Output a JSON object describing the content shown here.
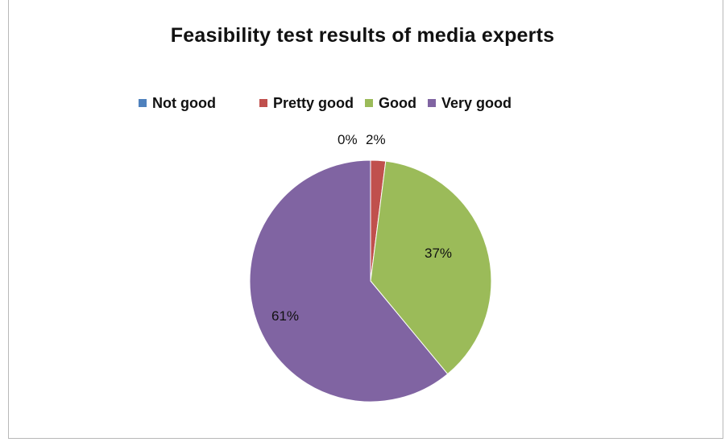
{
  "chart_data": {
    "type": "pie",
    "title": "Feasibility test results of media experts",
    "legend_position": "top",
    "slices": [
      {
        "name": "Not good",
        "value": 0,
        "label": "0%",
        "color": "#4f81bd"
      },
      {
        "name": "Pretty good",
        "value": 2,
        "label": "2%",
        "color": "#c0504d"
      },
      {
        "name": "Good",
        "value": 37,
        "label": "37%",
        "color": "#9bbb59"
      },
      {
        "name": "Very good",
        "value": 61,
        "label": "61%",
        "color": "#8064a2"
      }
    ]
  }
}
